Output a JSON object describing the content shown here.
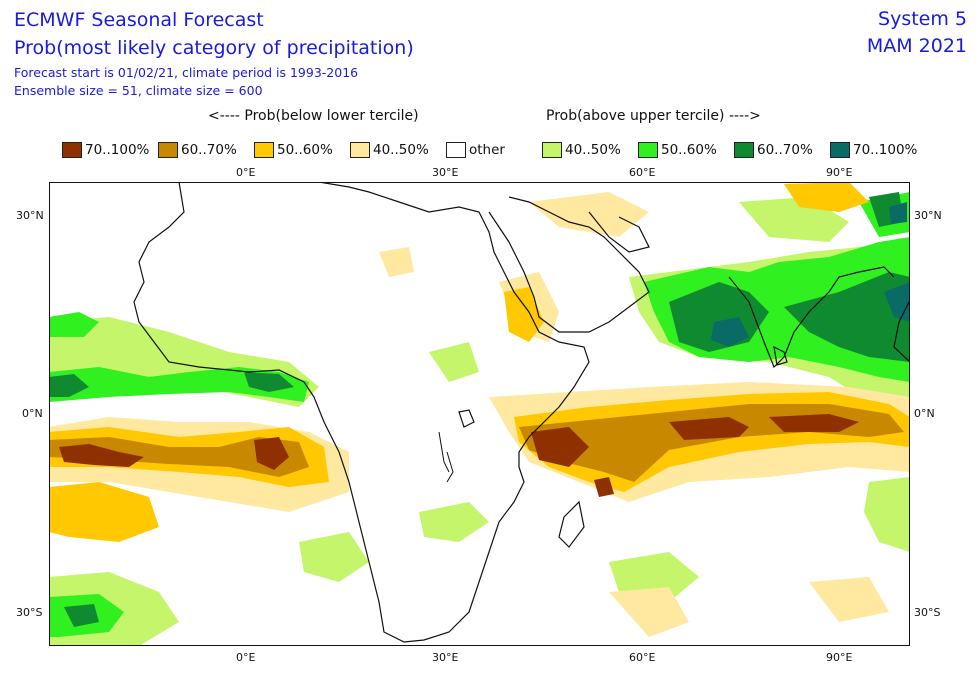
{
  "header": {
    "title_line1": "ECMWF Seasonal Forecast",
    "title_line2": "Prob(most likely category of precipitation)",
    "subtitle_line1": "Forecast start is 01/02/21, climate period is 1993-2016",
    "subtitle_line2": "Ensemble size = 51, climate size = 600",
    "system": "System 5",
    "season": "MAM 2021"
  },
  "legend": {
    "below_label": "<---- Prob(below lower tercile)",
    "above_label": "Prob(above upper tercile) ---->",
    "items": [
      {
        "label": "70..100%",
        "color": "#8f3000"
      },
      {
        "label": "60..70%",
        "color": "#c88800"
      },
      {
        "label": "50..60%",
        "color": "#ffc800"
      },
      {
        "label": "40..50%",
        "color": "#ffe8a0"
      },
      {
        "label": "other",
        "color": "#ffffff"
      },
      {
        "label": "40..50%",
        "color": "#c4f56a"
      },
      {
        "label": "50..60%",
        "color": "#30f020"
      },
      {
        "label": "60..70%",
        "color": "#108a30"
      },
      {
        "label": "70..100%",
        "color": "#0a6a66"
      }
    ]
  },
  "axes": {
    "top_lon_labels": [
      "0°E",
      "30°E",
      "60°E",
      "90°E"
    ],
    "bottom_lon_labels": [
      "0°E",
      "30°E",
      "60°E",
      "90°E"
    ],
    "left_lat_labels": [
      "30°N",
      "0°N",
      "30°S"
    ],
    "right_lat_labels": [
      "30°N",
      "0°N",
      "30°S"
    ]
  },
  "map": {
    "region": "Africa and Indian Ocean",
    "lon_range": [
      -30,
      100
    ],
    "lat_range": [
      -35,
      35
    ]
  }
}
